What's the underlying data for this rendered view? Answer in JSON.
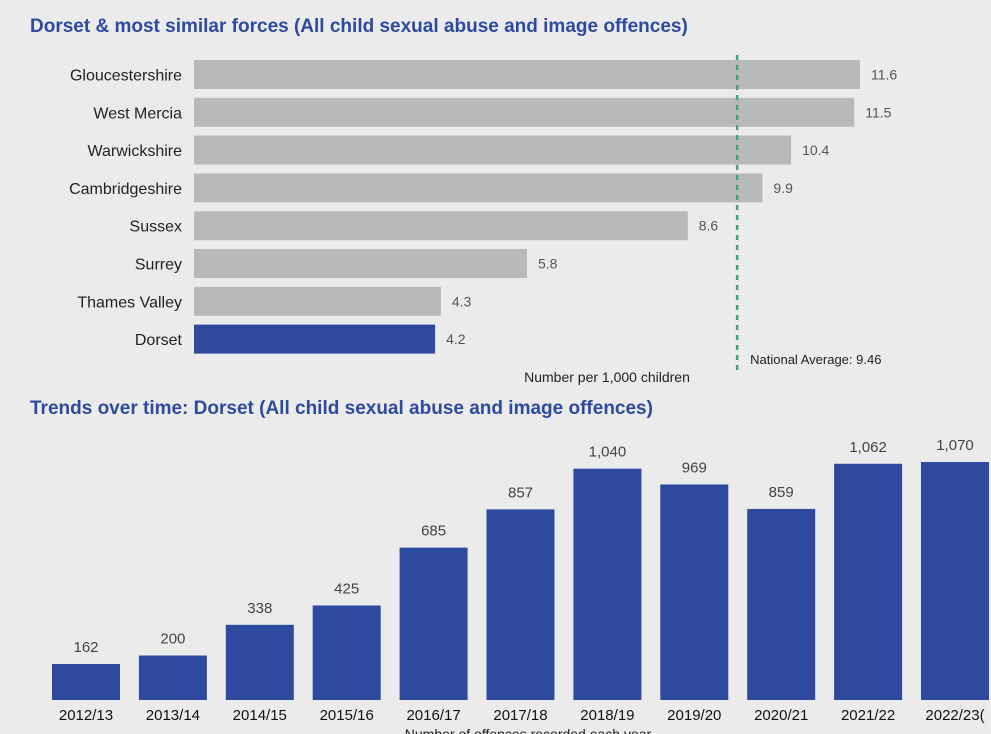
{
  "titles": {
    "top": "Dorset & most similar forces (All child sexual abuse and image offences)",
    "bottom": "Trends over time: Dorset (All child sexual abuse and image offences)"
  },
  "colors": {
    "background": "#ebebeb",
    "highlight_bar": "#2e4a9e",
    "other_bar": "#b9b9ba",
    "average_line": "#3aa96b",
    "title": "#2e4a9e"
  },
  "chart_data": [
    {
      "type": "bar",
      "orientation": "horizontal",
      "title": "Dorset & most similar forces (All child sexual abuse and image offences)",
      "categories": [
        "Gloucestershire",
        "West Mercia",
        "Warwickshire",
        "Cambridgeshire",
        "Sussex",
        "Surrey",
        "Thames Valley",
        "Dorset"
      ],
      "values": [
        11.6,
        11.5,
        10.4,
        9.9,
        8.6,
        5.8,
        4.3,
        4.2
      ],
      "value_labels": [
        "11.6",
        "11.5",
        "10.4",
        "9.9",
        "8.6",
        "5.8",
        "4.3",
        "4.2"
      ],
      "highlight": "Dorset",
      "xlabel": "Number per 1,000 children",
      "xlim": [
        0,
        11.6
      ],
      "reference_line": {
        "value": 9.46,
        "label": "National Average: 9.46",
        "style": "dashed"
      },
      "grid": false
    },
    {
      "type": "bar",
      "orientation": "vertical",
      "title": "Trends over time: Dorset (All child sexual abuse and image offences)",
      "categories": [
        "2012/13",
        "2013/14",
        "2014/15",
        "2015/16",
        "2016/17",
        "2017/18",
        "2018/19",
        "2019/20",
        "2020/21",
        "2021/22",
        "2022/23("
      ],
      "values": [
        162,
        200,
        338,
        425,
        685,
        857,
        1040,
        969,
        859,
        1062,
        1070
      ],
      "value_labels": [
        "162",
        "200",
        "338",
        "425",
        "685",
        "857",
        "1,040",
        "969",
        "859",
        "1,062",
        "1,070"
      ],
      "xlabel": "Number of offences recorded each year",
      "ylim": [
        0,
        1070
      ],
      "grid": false
    }
  ]
}
